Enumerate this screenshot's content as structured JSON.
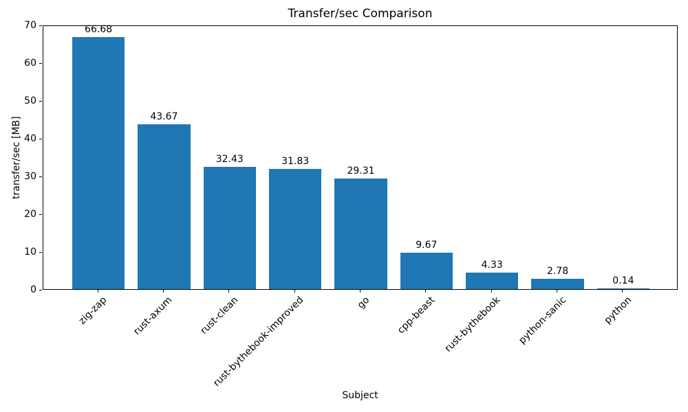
{
  "chart_data": {
    "type": "bar",
    "title": "Transfer/sec Comparison",
    "xlabel": "Subject",
    "ylabel": "transfer/sec [MB]",
    "categories": [
      "zig-zap",
      "rust-axum",
      "rust-clean",
      "rust-bythebook-improved",
      "go",
      "cpp-beast",
      "rust-bythebook",
      "python-sanic",
      "python"
    ],
    "values": [
      66.68,
      43.67,
      32.43,
      31.83,
      29.31,
      9.67,
      4.33,
      2.78,
      0.14
    ],
    "value_labels": [
      "66.68",
      "43.67",
      "32.43",
      "31.83",
      "29.31",
      "9.67",
      "4.33",
      "2.78",
      "0.14"
    ],
    "ylim": [
      0,
      70
    ],
    "yticks": [
      0,
      10,
      20,
      30,
      40,
      50,
      60,
      70
    ],
    "bar_color": "#1f77b4",
    "axis_color": "#000000",
    "background_color": "#ffffff",
    "grid": false,
    "legend": null,
    "x_tick_rotation_deg": 45,
    "bar_width_fraction": 0.8,
    "x_margin_fraction": 0.05
  }
}
